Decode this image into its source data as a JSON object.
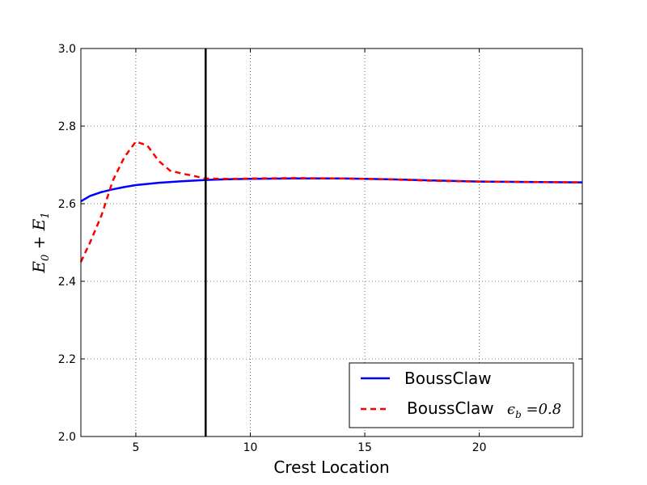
{
  "chart_data": {
    "type": "line",
    "xlabel": "Crest Location",
    "ylabel": "E_0 + E_1",
    "xlim": [
      2.6,
      24.5
    ],
    "ylim": [
      2.0,
      3.0
    ],
    "xticks": [
      5,
      10,
      15,
      20
    ],
    "xtick_labels": [
      "5",
      "10",
      "15",
      "20"
    ],
    "yticks": [
      2.0,
      2.2,
      2.4,
      2.6,
      2.8,
      3.0
    ],
    "ytick_labels": [
      "2.0",
      "2.2",
      "2.4",
      "2.6",
      "2.8",
      "3.0"
    ],
    "grid": true,
    "legend_position": "lower-right",
    "vertical_line_x": 8.05,
    "series": [
      {
        "name": "BoussClaw",
        "color": "#0000ff",
        "style": "solid",
        "x": [
          2.6,
          3.0,
          3.5,
          4.0,
          4.5,
          5.0,
          6.0,
          7.0,
          8.0,
          9.0,
          10.0,
          12.0,
          14.0,
          16.0,
          18.0,
          20.0,
          22.0,
          24.5
        ],
        "y": [
          2.606,
          2.62,
          2.63,
          2.637,
          2.643,
          2.648,
          2.654,
          2.658,
          2.661,
          2.663,
          2.664,
          2.665,
          2.665,
          2.663,
          2.66,
          2.657,
          2.656,
          2.655
        ]
      },
      {
        "name": "BoussClaw",
        "name_math": "ϵ_b =0.8",
        "color": "#ff0000",
        "style": "dashed",
        "x": [
          2.6,
          3.0,
          3.5,
          4.0,
          4.5,
          5.0,
          5.5,
          6.0,
          6.5,
          7.0,
          7.5,
          8.0,
          9.0,
          10.0,
          12.0,
          14.0,
          16.0,
          18.0,
          20.0,
          22.0,
          24.5
        ],
        "y": [
          2.45,
          2.5,
          2.57,
          2.66,
          2.72,
          2.76,
          2.75,
          2.71,
          2.685,
          2.678,
          2.672,
          2.665,
          2.664,
          2.665,
          2.666,
          2.665,
          2.663,
          2.659,
          2.657,
          2.656,
          2.655
        ]
      }
    ]
  }
}
